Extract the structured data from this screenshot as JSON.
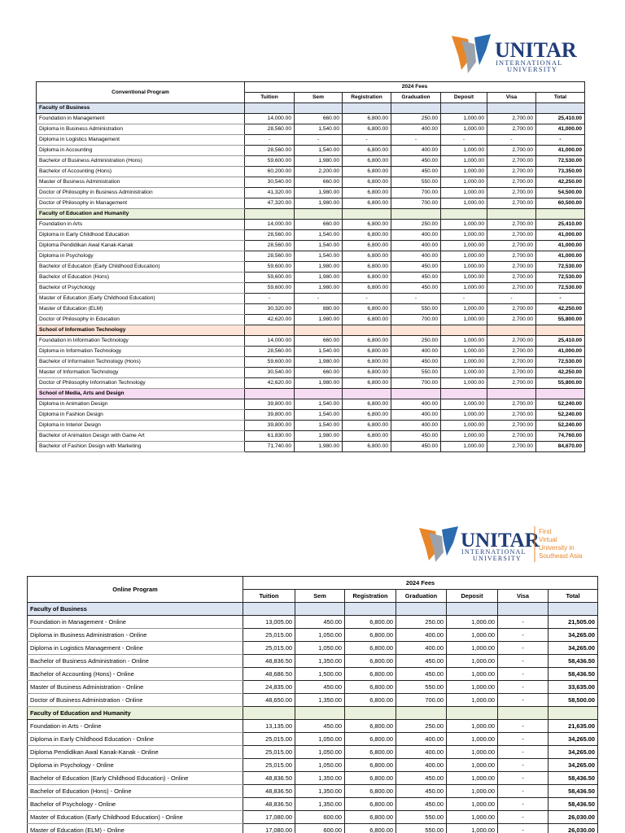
{
  "logo1": {
    "name": "UNITAR",
    "line1": "INTERNATIONAL",
    "line2": "UNIVERSITY"
  },
  "table1": {
    "title": "Conventional Program",
    "fees_label": "2024 Fees",
    "columns": [
      "Tuition",
      "Sem",
      "Registration",
      "Graduation",
      "Deposit",
      "Visa",
      "Total"
    ],
    "sections": [
      {
        "name": "Faculty of Business",
        "rows": [
          {
            "program": "Foundation in Management",
            "values": [
              "14,000.00",
              "660.00",
              "6,800.00",
              "250.00",
              "1,000.00",
              "2,700.00",
              "25,410.00"
            ]
          },
          {
            "program": "Diploma in Business Administration",
            "values": [
              "28,560.00",
              "1,540.00",
              "6,800.00",
              "400.00",
              "1,000.00",
              "2,700.00",
              "41,000.00"
            ]
          },
          {
            "program": "Diploma in Logistics Management",
            "values": [
              "-",
              "-",
              "-",
              "-",
              "-",
              "-",
              "-"
            ]
          },
          {
            "program": "Diploma in Accounting",
            "values": [
              "28,560.00",
              "1,540.00",
              "6,800.00",
              "400.00",
              "1,000.00",
              "2,700.00",
              "41,000.00"
            ]
          },
          {
            "program": "Bachelor of Business Administration (Hons)",
            "values": [
              "59,600.00",
              "1,980.00",
              "6,800.00",
              "450.00",
              "1,000.00",
              "2,700.00",
              "72,530.00"
            ]
          },
          {
            "program": "Bachelor of Accounting (Hons)",
            "values": [
              "60,200.00",
              "2,200.00",
              "6,800.00",
              "450.00",
              "1,000.00",
              "2,700.00",
              "73,350.00"
            ]
          },
          {
            "program": "Master of Business Administration",
            "values": [
              "30,540.00",
              "660.00",
              "6,800.00",
              "550.00",
              "1,000.00",
              "2,700.00",
              "42,250.00"
            ]
          },
          {
            "program": "Doctor of Philosophy in Business Administration",
            "values": [
              "41,320.00",
              "1,980.00",
              "6,800.00",
              "700.00",
              "1,000.00",
              "2,700.00",
              "54,500.00"
            ]
          },
          {
            "program": "Doctor of Philosophy in Management",
            "values": [
              "47,320.00",
              "1,980.00",
              "6,800.00",
              "700.00",
              "1,000.00",
              "2,700.00",
              "60,500.00"
            ]
          }
        ]
      },
      {
        "name": "Faculty of Education and Humanity",
        "rows": [
          {
            "program": "Foundation in Arts",
            "values": [
              "14,000.00",
              "660.00",
              "6,800.00",
              "250.00",
              "1,000.00",
              "2,700.00",
              "25,410.00"
            ]
          },
          {
            "program": "Diploma in Early Childhood Education",
            "values": [
              "28,560.00",
              "1,540.00",
              "6,800.00",
              "400.00",
              "1,000.00",
              "2,700.00",
              "41,000.00"
            ]
          },
          {
            "program": "Diploma Pendidikan Awal Kanak-Kanak",
            "values": [
              "28,560.00",
              "1,540.00",
              "6,800.00",
              "400.00",
              "1,000.00",
              "2,700.00",
              "41,000.00"
            ]
          },
          {
            "program": "Diploma in Psychology",
            "values": [
              "28,560.00",
              "1,540.00",
              "6,800.00",
              "400.00",
              "1,000.00",
              "2,700.00",
              "41,000.00"
            ]
          },
          {
            "program": "Bachelor of Education (Early Childhood Education)",
            "values": [
              "59,600.00",
              "1,980.00",
              "6,800.00",
              "450.00",
              "1,000.00",
              "2,700.00",
              "72,530.00"
            ]
          },
          {
            "program": "Bachelor of Education (Hons)",
            "values": [
              "59,600.00",
              "1,980.00",
              "6,800.00",
              "450.00",
              "1,000.00",
              "2,700.00",
              "72,530.00"
            ]
          },
          {
            "program": "Bachelor of Psychology",
            "values": [
              "59,600.00",
              "1,980.00",
              "6,800.00",
              "450.00",
              "1,000.00",
              "2,700.00",
              "72,530.00"
            ]
          },
          {
            "program": "Master of Education (Early Childhood Education)",
            "values": [
              "-",
              "-",
              "-",
              "-",
              "-",
              "-",
              "-"
            ]
          },
          {
            "program": "Master of Education (ELM)",
            "values": [
              "30,320.00",
              "880.00",
              "6,800.00",
              "550.00",
              "1,000.00",
              "2,700.00",
              "42,250.00"
            ]
          },
          {
            "program": "Doctor of Philosophy in Education",
            "values": [
              "42,620.00",
              "1,980.00",
              "6,800.00",
              "700.00",
              "1,000.00",
              "2,700.00",
              "55,800.00"
            ]
          }
        ]
      },
      {
        "name": "School of Information Technology",
        "rows": [
          {
            "program": "Foundation in Information Technology",
            "values": [
              "14,000.00",
              "660.00",
              "6,800.00",
              "250.00",
              "1,000.00",
              "2,700.00",
              "25,410.00"
            ]
          },
          {
            "program": "Diploma in Information Technology",
            "values": [
              "28,560.00",
              "1,540.00",
              "6,800.00",
              "400.00",
              "1,000.00",
              "2,700.00",
              "41,000.00"
            ]
          },
          {
            "program": "Bachelor of Information Technology (Hons)",
            "values": [
              "59,600.00",
              "1,980.00",
              "6,800.00",
              "450.00",
              "1,000.00",
              "2,700.00",
              "72,530.00"
            ]
          },
          {
            "program": "Master of Information Technology",
            "values": [
              "30,540.00",
              "660.00",
              "6,800.00",
              "550.00",
              "1,000.00",
              "2,700.00",
              "42,250.00"
            ]
          },
          {
            "program": "Doctor of Philosophy Information Technology",
            "values": [
              "42,620.00",
              "1,980.00",
              "6,800.00",
              "700.00",
              "1,000.00",
              "2,700.00",
              "55,800.00"
            ]
          }
        ]
      },
      {
        "name": "School of Media, Arts and Design",
        "rows": [
          {
            "program": "Diploma in Animation Design",
            "values": [
              "39,800.00",
              "1,540.00",
              "6,800.00",
              "400.00",
              "1,000.00",
              "2,700.00",
              "52,240.00"
            ]
          },
          {
            "program": "Diploma in Fashion Design",
            "values": [
              "39,800.00",
              "1,540.00",
              "6,800.00",
              "400.00",
              "1,000.00",
              "2,700.00",
              "52,240.00"
            ]
          },
          {
            "program": "Diploma in Interior Design",
            "values": [
              "39,800.00",
              "1,540.00",
              "6,800.00",
              "400.00",
              "1,000.00",
              "2,700.00",
              "52,240.00"
            ]
          },
          {
            "program": "Bachelor of Animation Design with Game Art",
            "values": [
              "61,830.00",
              "1,980.00",
              "6,800.00",
              "450.00",
              "1,000.00",
              "2,700.00",
              "74,760.00"
            ]
          },
          {
            "program": "Bachelor of Fashion Design with Marketing",
            "values": [
              "71,740.00",
              "1,980.00",
              "6,800.00",
              "450.00",
              "1,000.00",
              "2,700.00",
              "84,670.00"
            ]
          }
        ]
      }
    ]
  },
  "logo2": {
    "name": "UNITAR",
    "line1": "INTERNATIONAL",
    "line2": "UNIVERSITY",
    "tagline": [
      "First",
      "Virtual",
      "University in",
      "Southeast Asia"
    ]
  },
  "table2": {
    "title": "Online Program",
    "fees_label": "2024 Fees",
    "columns": [
      "Tuition",
      "Sem",
      "Registration",
      "Graduation",
      "Deposit",
      "Visa",
      "Total"
    ],
    "sections": [
      {
        "name": "Faculty of Business",
        "rows": [
          {
            "program": "Foundation in Management - Online",
            "values": [
              "13,005.00",
              "450.00",
              "6,800.00",
              "250.00",
              "1,000.00",
              "-",
              "21,505.00"
            ]
          },
          {
            "program": "Diploma in Business Administration - Online",
            "values": [
              "25,015.00",
              "1,050.00",
              "6,800.00",
              "400.00",
              "1,000.00",
              "-",
              "34,265.00"
            ]
          },
          {
            "program": "Diploma in Logistics Management - Online",
            "values": [
              "25,015.00",
              "1,050.00",
              "6,800.00",
              "400.00",
              "1,000.00",
              "-",
              "34,265.00"
            ]
          },
          {
            "program": "Bachelor of Business Administration - Online",
            "values": [
              "48,836.50",
              "1,350.00",
              "6,800.00",
              "450.00",
              "1,000.00",
              "-",
              "58,436.50"
            ]
          },
          {
            "program": "Bachelor of Accounting (Hons) - Online",
            "values": [
              "48,686.50",
              "1,500.00",
              "6,800.00",
              "450.00",
              "1,000.00",
              "-",
              "58,436.50"
            ]
          },
          {
            "program": "Master of Business Administration - Online",
            "values": [
              "24,835.00",
              "450.00",
              "6,800.00",
              "550.00",
              "1,000.00",
              "-",
              "33,635.00"
            ]
          },
          {
            "program": "Doctor of Business Administration - Online",
            "values": [
              "48,650.00",
              "1,350.00",
              "6,800.00",
              "700.00",
              "1,000.00",
              "-",
              "58,500.00"
            ]
          }
        ]
      },
      {
        "name": "Faculty of Education and Humanity",
        "rows": [
          {
            "program": "Foundation in Arts - Online",
            "values": [
              "13,135.00",
              "450.00",
              "6,800.00",
              "250.00",
              "1,000.00",
              "-",
              "21,635.00"
            ]
          },
          {
            "program": "Diploma in Early Childhood Education - Online",
            "values": [
              "25,015.00",
              "1,050.00",
              "6,800.00",
              "400.00",
              "1,000.00",
              "-",
              "34,265.00"
            ]
          },
          {
            "program": "Diploma Pendidikan Awal Kanak-Kanak - Online",
            "values": [
              "25,015.00",
              "1,050.00",
              "6,800.00",
              "400.00",
              "1,000.00",
              "-",
              "34,265.00"
            ]
          },
          {
            "program": "Diploma in Psychology - Online",
            "values": [
              "25,015.00",
              "1,050.00",
              "6,800.00",
              "400.00",
              "1,000.00",
              "-",
              "34,265.00"
            ]
          },
          {
            "program": "Bachelor of Education (Early Childhood Education) - Online",
            "values": [
              "48,836.50",
              "1,350.00",
              "6,800.00",
              "450.00",
              "1,000.00",
              "-",
              "58,436.50"
            ]
          },
          {
            "program": "Bachelor of Education (Hons) - Online",
            "values": [
              "48,836.50",
              "1,350.00",
              "6,800.00",
              "450.00",
              "1,000.00",
              "-",
              "58,436.50"
            ]
          },
          {
            "program": "Bachelor of Psychology - Online",
            "values": [
              "48,836.50",
              "1,350.00",
              "6,800.00",
              "450.00",
              "1,000.00",
              "-",
              "58,436.50"
            ]
          },
          {
            "program": "Master of Education (Early Childhood Education) - Online",
            "values": [
              "17,080.00",
              "600.00",
              "6,800.00",
              "550.00",
              "1,000.00",
              "-",
              "26,030.00"
            ]
          },
          {
            "program": "Master of Education (ELM) - Online",
            "values": [
              "17,080.00",
              "600.00",
              "6,800.00",
              "550.00",
              "1,000.00",
              "-",
              "26,030.00"
            ]
          }
        ]
      }
    ]
  }
}
